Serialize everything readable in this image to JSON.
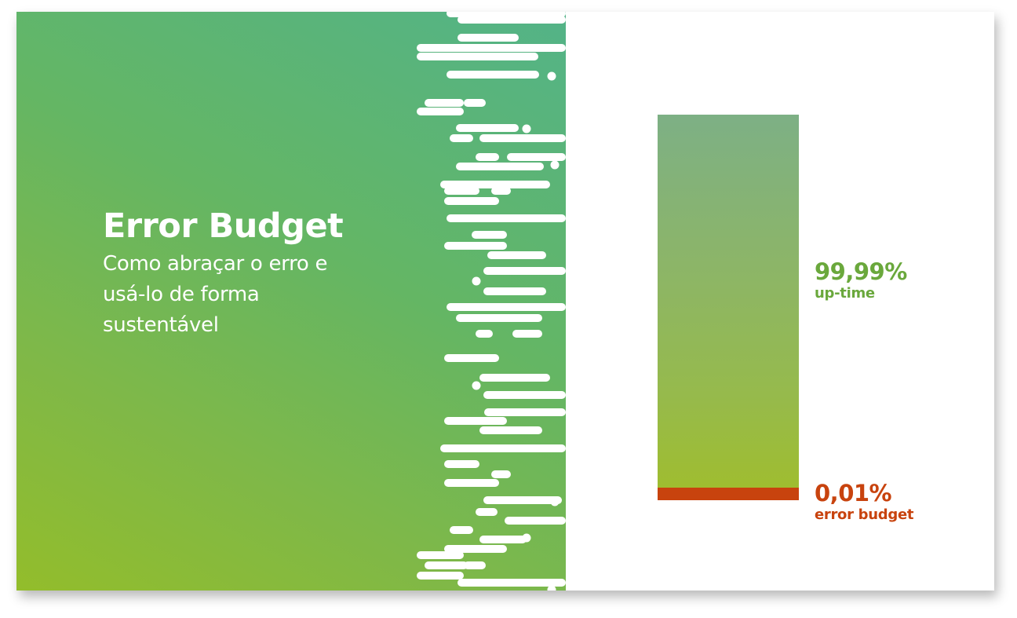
{
  "slide": {
    "title": "Error Budget",
    "subtitle": "Como abraçar o erro e usá-lo de forma sustentável"
  },
  "chart_data": {
    "type": "bar",
    "series": [
      {
        "name": "up-time",
        "value": 99.99,
        "value_label": "99,99%",
        "color": "#6aa83c"
      },
      {
        "name": "error budget",
        "value": 0.01,
        "value_label": "0,01%",
        "color": "#c8430e"
      }
    ]
  },
  "colors": {
    "gradient_top": "#53b388",
    "gradient_bottom": "#93bd2b",
    "uptime": "#6aa83c",
    "error": "#c8430e"
  }
}
